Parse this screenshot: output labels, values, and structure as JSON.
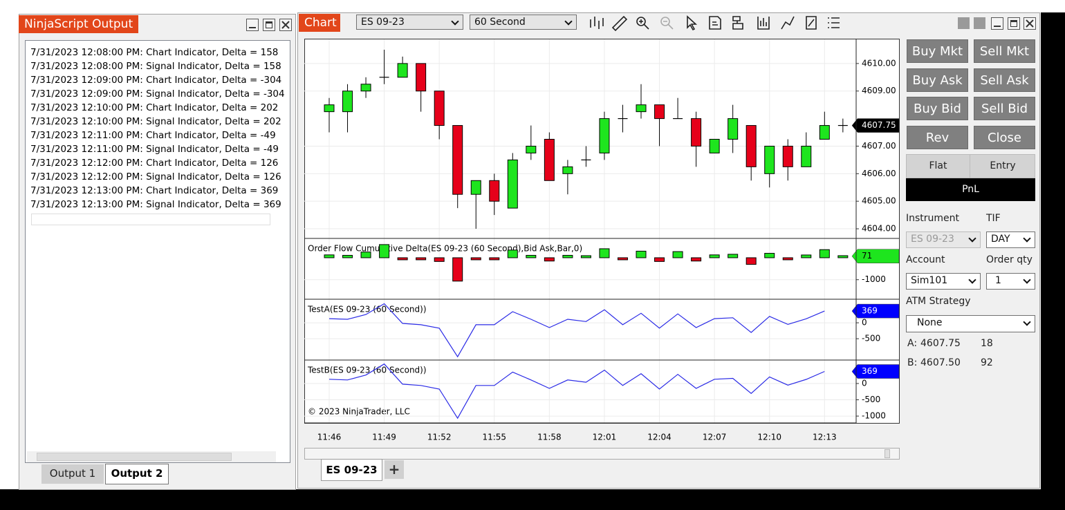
{
  "output_window": {
    "title": "NinjaScript Output",
    "lines": [
      "7/31/2023 12:08:00 PM: Chart Indicator, Delta = 158",
      "7/31/2023 12:08:00 PM: Signal Indicator, Delta = 158",
      "7/31/2023 12:09:00 PM: Chart Indicator, Delta = -304",
      "7/31/2023 12:09:00 PM: Signal Indicator, Delta = -304",
      "7/31/2023 12:10:00 PM: Chart Indicator, Delta = 202",
      "7/31/2023 12:10:00 PM: Signal Indicator, Delta = 202",
      "7/31/2023 12:11:00 PM: Chart Indicator, Delta = -49",
      "7/31/2023 12:11:00 PM: Signal Indicator, Delta = -49",
      "7/31/2023 12:12:00 PM: Chart Indicator, Delta = 126",
      "7/31/2023 12:12:00 PM: Signal Indicator, Delta = 126",
      "7/31/2023 12:13:00 PM: Chart Indicator, Delta = 369",
      "7/31/2023 12:13:00 PM: Signal Indicator, Delta = 369"
    ],
    "tabs": [
      "Output 1",
      "Output 2"
    ]
  },
  "chart_window": {
    "title": "Chart",
    "instrument": "ES 09-23",
    "interval": "60 Second",
    "tab": "ES 09-23",
    "add_tab": "+",
    "copyright": "© 2023 NinjaTrader, LLC"
  },
  "chart_data": [
    {
      "type": "candlestick",
      "categories": [
        "11:46",
        null,
        null,
        "11:49",
        null,
        null,
        "11:52",
        null,
        null,
        "11:55",
        null,
        null,
        "11:58",
        null,
        null,
        "12:01",
        null,
        null,
        "12:04",
        null,
        null,
        "12:07",
        null,
        null,
        "12:10",
        null,
        null,
        "12:13",
        null
      ],
      "open": [
        4608.25,
        4608.25,
        4609.0,
        4609.5,
        4609.5,
        4610.0,
        4609.0,
        4607.75,
        4605.25,
        4605.75,
        4604.75,
        4606.75,
        4607.25,
        4606.0,
        4606.5,
        4606.75,
        4608.0,
        4608.25,
        4608.5,
        4608.0,
        4608.0,
        4606.75,
        4607.25,
        4607.75,
        4606.0,
        4607.0,
        4606.25,
        4607.25,
        4607.75
      ],
      "high": [
        4608.75,
        4609.25,
        4609.5,
        4610.5,
        4610.25,
        4610.0,
        4609.0,
        4607.75,
        4605.75,
        4606.0,
        4606.75,
        4607.75,
        4607.5,
        4606.5,
        4607.0,
        4608.25,
        4608.5,
        4609.25,
        4608.5,
        4608.75,
        4608.25,
        4607.25,
        4608.5,
        4607.75,
        4607.0,
        4607.25,
        4607.5,
        4608.25,
        4608.0
      ],
      "low": [
        4607.5,
        4607.5,
        4608.75,
        4609.25,
        4609.5,
        4608.25,
        4607.25,
        4604.75,
        4604.0,
        4604.5,
        4604.75,
        4606.5,
        4605.75,
        4605.25,
        4606.25,
        4606.5,
        4607.5,
        4608.0,
        4607.0,
        4608.0,
        4606.25,
        4606.75,
        4606.75,
        4605.75,
        4605.5,
        4605.75,
        4606.25,
        4607.25,
        4607.5
      ],
      "close": [
        4608.5,
        4609.0,
        4609.25,
        4609.5,
        4610.0,
        4609.0,
        4607.75,
        4605.25,
        4605.75,
        4605.0,
        4606.5,
        4607.0,
        4605.75,
        4606.25,
        4606.5,
        4608.0,
        4608.0,
        4608.5,
        4608.0,
        4608.0,
        4607.0,
        4607.25,
        4608.0,
        4606.25,
        4607.0,
        4606.25,
        4607.0,
        4607.75,
        4607.75
      ],
      "ylim": [
        4603.65,
        4610.9
      ],
      "yticks": [
        {
          "value": 4604,
          "label": "4604.00"
        },
        {
          "value": 4605,
          "label": "4605.00"
        },
        {
          "value": 4606,
          "label": "4606.00"
        },
        {
          "value": 4607,
          "label": "4607.00"
        },
        {
          "value": 4609,
          "label": "4609.00"
        },
        {
          "value": 4610,
          "label": "4610.00"
        }
      ],
      "up_color": "#1ee51e",
      "down_color": "#e6001a",
      "grid": true
    },
    {
      "type": "bar",
      "title": "Order Flow Cumulative Delta(ES 09-23 (60 Second),Bid Ask,Bar,0)",
      "values": [
        130,
        110,
        260,
        600,
        -20,
        -60,
        -170,
        -1065,
        -60,
        -60,
        350,
        110,
        -150,
        110,
        40,
        410,
        -60,
        300,
        -170,
        280,
        -150,
        130,
        158,
        -304,
        202,
        -49,
        126,
        369,
        71
      ],
      "ylim": [
        -1890,
        880
      ],
      "yticks": [
        -1000
      ],
      "up_color": "#1ee51e",
      "down_color": "#e6001a",
      "grid": true
    },
    {
      "type": "line",
      "title": "TestA(ES 09-23 (60 Second))",
      "values": [
        130,
        110,
        260,
        600,
        -20,
        -60,
        -170,
        -1065,
        -60,
        -60,
        350,
        110,
        -150,
        110,
        40,
        410,
        -60,
        300,
        -170,
        280,
        -150,
        130,
        158,
        -304,
        202,
        -49,
        126,
        369,
        null
      ],
      "ylim": [
        -1170,
        740
      ],
      "yticks": [
        0,
        -500
      ],
      "color": "#2a2ae6",
      "grid": true
    },
    {
      "type": "line",
      "title": "TestB(ES 09-23 (60 Second))",
      "values": [
        130,
        110,
        260,
        600,
        -20,
        -60,
        -170,
        -1065,
        -60,
        -60,
        350,
        110,
        -150,
        110,
        40,
        410,
        -60,
        300,
        -170,
        280,
        -150,
        130,
        158,
        -304,
        202,
        -49,
        126,
        369,
        null
      ],
      "ylim": [
        -1210,
        720
      ],
      "yticks": [
        0,
        -500,
        -1000
      ],
      "color": "#2a2ae6",
      "grid": true
    }
  ],
  "order_panel": {
    "buttons": [
      [
        "Buy Mkt",
        "Sell Mkt"
      ],
      [
        "Buy Ask",
        "Sell Ask"
      ],
      [
        "Buy Bid",
        "Sell Bid"
      ],
      [
        "Rev",
        "Close"
      ]
    ],
    "position": "Flat",
    "entry": "Entry",
    "pnl": "PnL",
    "instrument_label": "Instrument",
    "instrument": "ES 09-23",
    "tif_label": "TIF",
    "tif": "DAY",
    "account_label": "Account",
    "account": "Sim101",
    "qty_label": "Order qty",
    "qty": "1",
    "atm_label": "ATM Strategy",
    "atm": "None",
    "ask": {
      "label": "A:",
      "price": "4607.75",
      "size": "18"
    },
    "bid": {
      "label": "B:",
      "price": "4607.50",
      "size": "92"
    }
  }
}
